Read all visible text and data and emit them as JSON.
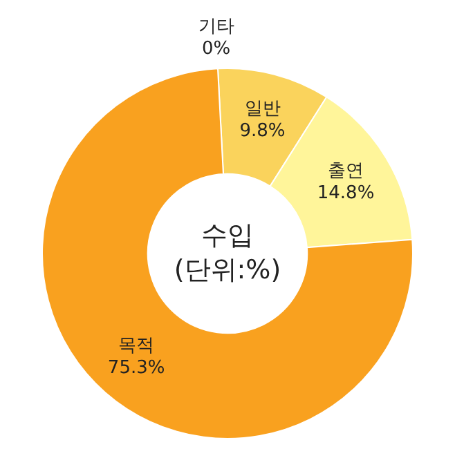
{
  "chart_data": {
    "type": "donut",
    "title": "수입",
    "subtitle": "(단위:%)",
    "categories": [
      "기타",
      "일반",
      "출연",
      "목적"
    ],
    "values": [
      0,
      9.8,
      14.8,
      75.3
    ],
    "colors": [
      "#fad35c",
      "#fad35c",
      "#fff59a",
      "#f9a11f"
    ],
    "value_labels": [
      "0%",
      "9.8%",
      "14.8%",
      "75.3%"
    ],
    "legend": false
  }
}
